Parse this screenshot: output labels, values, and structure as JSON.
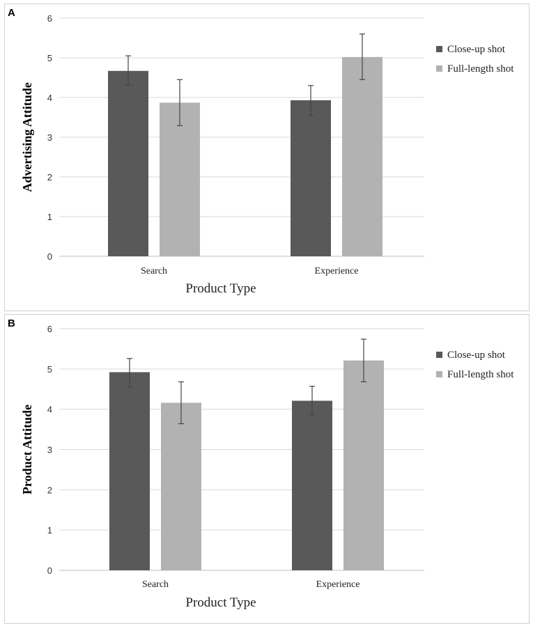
{
  "chart_data": [
    {
      "type": "bar",
      "panel_label": "A",
      "title": "",
      "xlabel": "Product Type",
      "ylabel": "Advertising Attitude",
      "ylim": [
        0,
        6
      ],
      "yticks": [
        "0",
        "1",
        "2",
        "3",
        "4",
        "5",
        "6"
      ],
      "categories": [
        "Search",
        "Experience"
      ],
      "series": [
        {
          "name": "Close-up shot",
          "color": "#595959",
          "values": [
            4.67,
            3.93
          ],
          "err_low": [
            4.32,
            3.55
          ],
          "err_high": [
            5.05,
            4.3
          ]
        },
        {
          "name": "Full-length shot",
          "color": "#b2b2b2",
          "values": [
            3.87,
            5.02
          ],
          "err_low": [
            3.29,
            4.45
          ],
          "err_high": [
            4.45,
            5.6
          ]
        }
      ],
      "grid": true,
      "legend": "right"
    },
    {
      "type": "bar",
      "panel_label": "B",
      "title": "",
      "xlabel": "Product Type",
      "ylabel": "Product Attitude",
      "ylim": [
        0,
        6
      ],
      "yticks": [
        "0",
        "1",
        "2",
        "3",
        "4",
        "5",
        "6"
      ],
      "categories": [
        "Search",
        "Experience"
      ],
      "series": [
        {
          "name": "Close-up shot",
          "color": "#595959",
          "values": [
            4.92,
            4.21
          ],
          "err_low": [
            4.55,
            3.86
          ],
          "err_high": [
            5.26,
            4.57
          ]
        },
        {
          "name": "Full-length shot",
          "color": "#b2b2b2",
          "values": [
            4.16,
            5.21
          ],
          "err_low": [
            3.64,
            4.68
          ],
          "err_high": [
            4.68,
            5.74
          ]
        }
      ],
      "grid": true,
      "legend": "right"
    }
  ]
}
